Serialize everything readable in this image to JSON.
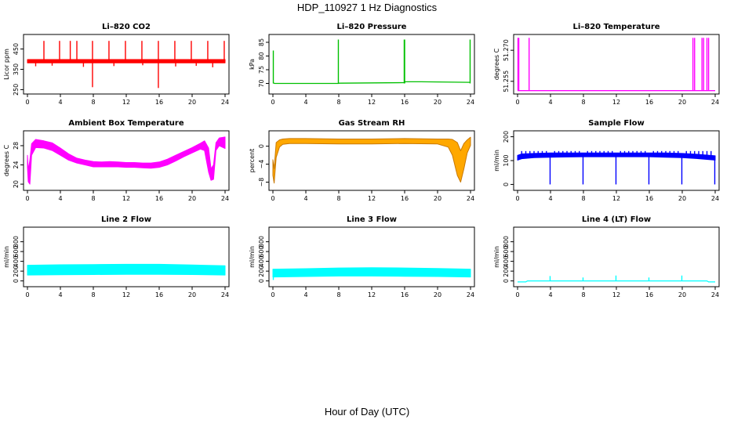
{
  "figure": {
    "title": "HDP_110927  1 Hz Diagnostics",
    "xlabel": "Hour of Day (UTC)"
  },
  "chart_data": [
    {
      "id": "co2",
      "type": "line",
      "title": "Li–820 CO2",
      "ylabel": "Licor ppm",
      "color": "#ff0000",
      "xlim": [
        0,
        24
      ],
      "xticks": [
        0,
        4,
        8,
        12,
        16,
        20,
        24
      ],
      "ylim": [
        240,
        510
      ],
      "yticks": [
        250,
        350,
        450
      ],
      "ytick_labels": [
        "250",
        "350",
        "450"
      ],
      "series": [
        {
          "kind": "band",
          "x": [
            0,
            24
          ],
          "lo": [
            382,
            382
          ],
          "hi": [
            398,
            398
          ]
        },
        {
          "kind": "spikes",
          "x": [
            2.0,
            3.9,
            5.2,
            6.0,
            7.9,
            9.9,
            11.9,
            13.9,
            15.9,
            17.9,
            19.9,
            21.9,
            23.9
          ],
          "base": 390,
          "values": [
            490,
            490,
            490,
            490,
            490,
            490,
            490,
            490,
            490,
            490,
            490,
            490,
            490
          ]
        },
        {
          "kind": "spikes",
          "x": [
            7.9,
            15.9
          ],
          "base": 390,
          "values": [
            262,
            258
          ]
        },
        {
          "kind": "spikes",
          "x": [
            1.0,
            3.0,
            6.8,
            10.5,
            14.0,
            18.0,
            20.5,
            22.5
          ],
          "base": 390,
          "values": [
            365,
            368,
            362,
            366,
            370,
            364,
            367,
            360
          ]
        }
      ]
    },
    {
      "id": "pressure",
      "type": "line",
      "title": "Li–820 Pressure",
      "ylabel": "kPa",
      "color": "#00c000",
      "xlim": [
        0,
        24
      ],
      "xticks": [
        0,
        4,
        8,
        12,
        16,
        20,
        24
      ],
      "ylim": [
        67,
        87
      ],
      "yticks": [
        70,
        75,
        80,
        85
      ],
      "ytick_labels": [
        "70",
        "75",
        "80",
        "85"
      ],
      "series": [
        {
          "kind": "line",
          "x": [
            0,
            0.2,
            8,
            8.05,
            16,
            16.05,
            18,
            24
          ],
          "y": [
            70.2,
            70.0,
            70.0,
            70.1,
            70.3,
            70.6,
            70.6,
            70.4
          ]
        },
        {
          "kind": "spikes",
          "x": [
            0.05,
            7.95,
            15.95,
            16.0,
            23.95
          ],
          "base": 70,
          "values": [
            82,
            86,
            86,
            86,
            86
          ]
        }
      ]
    },
    {
      "id": "licor-temp",
      "type": "line",
      "title": "Li–820 Temperature",
      "ylabel": "degrees C",
      "color": "#ff00ff",
      "xlim": [
        0,
        24
      ],
      "xticks": [
        0,
        4,
        8,
        12,
        16,
        20,
        24
      ],
      "ylim": [
        51.25,
        51.2765
      ],
      "yticks": [
        51.255,
        51.27
      ],
      "ytick_labels": [
        "51.255",
        "51.270"
      ],
      "series": [
        {
          "kind": "line",
          "x": [
            0,
            24
          ],
          "y": [
            51.2505,
            51.2505
          ]
        },
        {
          "kind": "spikes",
          "x": [
            0.05,
            0.15,
            1.4,
            21.3,
            21.5,
            22.4,
            22.6,
            23.0,
            23.2
          ],
          "base": 51.2505,
          "values": [
            51.276,
            51.276,
            51.276,
            51.276,
            51.276,
            51.276,
            51.276,
            51.276,
            51.276
          ]
        }
      ]
    },
    {
      "id": "box-temp",
      "type": "line",
      "title": "Ambient Box Temperature",
      "ylabel": "degrees C",
      "color": "#ff00ff",
      "xlim": [
        0,
        24
      ],
      "xticks": [
        0,
        4,
        8,
        12,
        16,
        20,
        24
      ],
      "ylim": [
        19.2,
        30.6
      ],
      "yticks": [
        20,
        24,
        28
      ],
      "ytick_labels": [
        "20",
        "24",
        "28"
      ],
      "series": [
        {
          "kind": "band",
          "x": [
            0,
            0.1,
            0.3,
            0.5,
            1,
            2,
            3,
            4,
            5,
            6,
            7,
            8,
            9,
            10,
            11,
            12,
            13,
            14,
            15,
            16,
            17,
            18,
            19,
            20,
            21,
            21.5,
            22,
            22.3,
            22.6,
            22.9,
            23.3,
            24
          ],
          "lo": [
            23.5,
            20.5,
            20.0,
            26,
            27.6,
            27.5,
            27.0,
            26.0,
            25.0,
            24.4,
            24.0,
            23.6,
            23.6,
            23.6,
            23.6,
            23.5,
            23.5,
            23.4,
            23.3,
            23.5,
            24.0,
            24.8,
            25.7,
            26.5,
            27.3,
            27.0,
            22.5,
            20.8,
            21.0,
            27.0,
            28.0,
            27.4
          ],
          "hi": [
            26.0,
            23.0,
            25.0,
            28.4,
            29.3,
            29.0,
            28.6,
            27.5,
            26.3,
            25.4,
            25.0,
            24.7,
            24.6,
            24.7,
            24.6,
            24.5,
            24.5,
            24.4,
            24.4,
            24.6,
            25.2,
            26.0,
            26.8,
            27.6,
            28.5,
            29.0,
            27.5,
            23.2,
            24.0,
            28.6,
            29.6,
            29.8
          ]
        }
      ]
    },
    {
      "id": "rh",
      "type": "line",
      "title": "Gas Stream RH",
      "ylabel": "percent",
      "color": "#c87800",
      "fill": "#ffa800",
      "xlim": [
        0,
        24
      ],
      "xticks": [
        0,
        4,
        8,
        12,
        16,
        20,
        24
      ],
      "ylim": [
        -9.3,
        2.9
      ],
      "yticks": [
        -8,
        -4,
        0
      ],
      "ytick_labels": [
        "−8",
        "−4",
        "0"
      ],
      "series": [
        {
          "kind": "band",
          "x": [
            0,
            0.15,
            0.4,
            0.8,
            1.2,
            2,
            4,
            8,
            12,
            16,
            20,
            21.3,
            21.8,
            22.4,
            22.8,
            23.2,
            23.6,
            24
          ],
          "lo": [
            -6.5,
            -8.2,
            -2.5,
            -0.2,
            0.4,
            0.6,
            0.6,
            0.5,
            0.5,
            0.6,
            0.5,
            -0.2,
            -2.0,
            -6.5,
            -8.0,
            -5.0,
            -1.5,
            0.2
          ],
          "hi": [
            -3.0,
            -5.0,
            0.8,
            1.4,
            1.6,
            1.7,
            1.7,
            1.6,
            1.6,
            1.7,
            1.6,
            1.6,
            1.5,
            0.8,
            -1.0,
            0.6,
            1.4,
            2.0
          ]
        }
      ]
    },
    {
      "id": "sample-flow",
      "type": "line",
      "title": "Sample Flow",
      "ylabel": "ml/min",
      "color": "#0000ff",
      "xlim": [
        0,
        24
      ],
      "xticks": [
        0,
        4,
        8,
        12,
        16,
        20,
        24
      ],
      "ylim": [
        -15,
        215
      ],
      "yticks": [
        0,
        100,
        200
      ],
      "ytick_labels": [
        "0",
        "100",
        "200"
      ],
      "series": [
        {
          "kind": "band",
          "x": [
            0,
            0.5,
            2,
            4,
            6,
            8,
            10,
            12,
            14,
            16,
            18,
            20,
            22,
            24
          ],
          "lo": [
            102,
            108,
            112,
            114,
            115,
            116,
            116,
            116,
            116,
            116,
            114,
            112,
            108,
            102
          ],
          "hi": [
            122,
            128,
            130,
            132,
            132,
            132,
            132,
            132,
            132,
            132,
            132,
            130,
            126,
            120
          ]
        },
        {
          "kind": "spikes",
          "x": [
            0.5,
            1,
            1.5,
            2,
            2.5,
            3,
            3.5,
            4.5,
            5,
            5.5,
            6,
            6.5,
            7,
            7.5,
            8.5,
            9,
            9.5,
            10,
            10.5,
            11,
            11.5,
            12.5,
            13,
            13.5,
            14,
            14.5,
            15,
            15.5,
            16.5,
            17,
            17.5,
            18,
            18.5,
            19,
            19.5,
            20.5,
            21,
            21.5,
            22,
            22.5,
            23,
            23.5
          ],
          "base": 118,
          "values": [
            140,
            140,
            140,
            140,
            140,
            140,
            140,
            140,
            140,
            140,
            140,
            140,
            140,
            140,
            140,
            140,
            140,
            140,
            140,
            140,
            140,
            140,
            140,
            140,
            140,
            140,
            140,
            140,
            140,
            140,
            140,
            140,
            140,
            140,
            140,
            140,
            140,
            140,
            140,
            140,
            140,
            140
          ]
        },
        {
          "kind": "spikes",
          "x": [
            3.95,
            7.95,
            11.95,
            15.95,
            19.95,
            23.95
          ],
          "base": 118,
          "values": [
            0,
            0,
            0,
            0,
            0,
            0
          ]
        }
      ]
    },
    {
      "id": "line2-flow",
      "type": "line",
      "title": "Line 2 Flow",
      "ylabel": "ml/min",
      "color": "#00ffff",
      "xlim": [
        0,
        24
      ],
      "xticks": [
        0,
        4,
        8,
        12,
        16,
        20,
        24
      ],
      "ylim": [
        -70,
        1050
      ],
      "yticks": [
        0,
        200,
        400,
        600,
        800
      ],
      "ytick_labels": [
        "0",
        "200",
        "400",
        "600",
        "800"
      ],
      "series": [
        {
          "kind": "band",
          "x": [
            0,
            4,
            8,
            12,
            16,
            20,
            24
          ],
          "lo": [
            120,
            125,
            130,
            135,
            135,
            130,
            120
          ],
          "hi": [
            320,
            330,
            335,
            340,
            340,
            325,
            310
          ]
        }
      ]
    },
    {
      "id": "line3-flow",
      "type": "line",
      "title": "Line 3 Flow",
      "ylabel": "ml/min",
      "color": "#00ffff",
      "xlim": [
        0,
        24
      ],
      "xticks": [
        0,
        4,
        8,
        12,
        16,
        20,
        24
      ],
      "ylim": [
        -70,
        1050
      ],
      "yticks": [
        0,
        200,
        400,
        600,
        800
      ],
      "ytick_labels": [
        "0",
        "200",
        "400",
        "600",
        "800"
      ],
      "series": [
        {
          "kind": "band",
          "x": [
            0,
            4,
            8,
            12,
            16,
            20,
            24
          ],
          "lo": [
            80,
            90,
            100,
            100,
            95,
            90,
            80
          ],
          "hi": [
            240,
            250,
            265,
            270,
            265,
            255,
            240
          ]
        },
        {
          "kind": "spikes",
          "x": [
            0.05
          ],
          "base": 150,
          "values": [
            20
          ]
        }
      ]
    },
    {
      "id": "line4-flow",
      "type": "line",
      "title": "Line 4 (LT) Flow",
      "ylabel": "ml/min",
      "color": "#00ffff",
      "xlim": [
        0,
        24
      ],
      "xticks": [
        0,
        4,
        8,
        12,
        16,
        20,
        24
      ],
      "ylim": [
        -70,
        1050
      ],
      "yticks": [
        0,
        200,
        400,
        600,
        800
      ],
      "ytick_labels": [
        "0",
        "200",
        "400",
        "600",
        "800"
      ],
      "series": [
        {
          "kind": "line",
          "x": [
            0,
            1,
            1.2,
            23,
            23.2,
            24
          ],
          "y": [
            -20,
            -20,
            0,
            0,
            -20,
            -20
          ]
        },
        {
          "kind": "spikes",
          "x": [
            3.95,
            7.95,
            11.95,
            15.95,
            19.95
          ],
          "base": 0,
          "values": [
            100,
            70,
            110,
            70,
            110
          ]
        }
      ]
    }
  ]
}
